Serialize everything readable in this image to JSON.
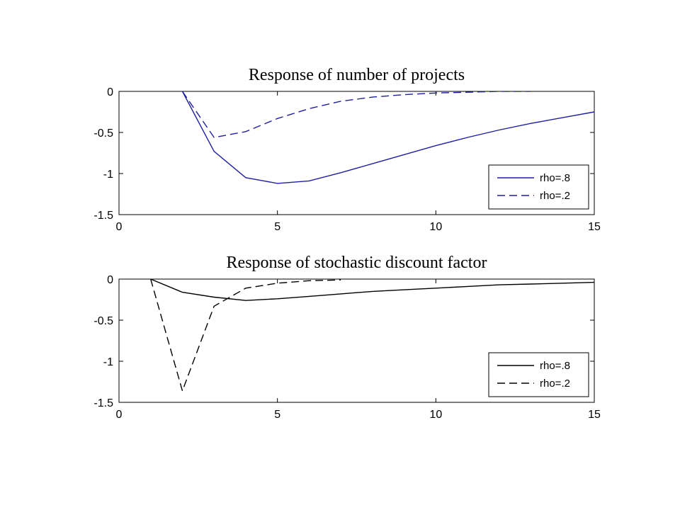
{
  "chart_data": [
    {
      "type": "line",
      "title": "Response of number of projects",
      "xlabel": "",
      "ylabel": "",
      "xlim": [
        0,
        15
      ],
      "ylim": [
        -1.5,
        0
      ],
      "xticks": [
        "0",
        "5",
        "10",
        "15"
      ],
      "yticks": [
        "0",
        "-0.5",
        "-1",
        "-1.5"
      ],
      "grid": false,
      "legend_position": "bottom-right",
      "color": "#1f1fa0",
      "series": [
        {
          "name": "rho=.8",
          "style": "solid",
          "x": [
            2,
            3,
            4,
            5,
            6,
            7,
            8,
            9,
            10,
            11,
            12,
            13,
            14,
            15
          ],
          "y": [
            0,
            -0.73,
            -1.05,
            -1.12,
            -1.09,
            -0.99,
            -0.88,
            -0.77,
            -0.66,
            -0.56,
            -0.47,
            -0.39,
            -0.32,
            -0.25
          ]
        },
        {
          "name": "rho=.2",
          "style": "dashed",
          "x": [
            2,
            3,
            4,
            5,
            6,
            7,
            8,
            9,
            10,
            11,
            12,
            13
          ],
          "y": [
            0,
            -0.56,
            -0.49,
            -0.33,
            -0.21,
            -0.12,
            -0.07,
            -0.04,
            -0.02,
            -0.01,
            0,
            0
          ]
        }
      ]
    },
    {
      "type": "line",
      "title": "Response of stochastic discount factor",
      "xlabel": "",
      "ylabel": "",
      "xlim": [
        0,
        15
      ],
      "ylim": [
        -1.5,
        0
      ],
      "xticks": [
        "0",
        "5",
        "10",
        "15"
      ],
      "yticks": [
        "0",
        "-0.5",
        "-1",
        "-1.5"
      ],
      "grid": false,
      "legend_position": "bottom-right",
      "color": "#000000",
      "series": [
        {
          "name": "rho=.8",
          "style": "solid",
          "x": [
            1,
            2,
            3,
            4,
            5,
            6,
            7,
            8,
            9,
            10,
            11,
            12,
            13,
            14,
            15
          ],
          "y": [
            0,
            -0.16,
            -0.22,
            -0.26,
            -0.24,
            -0.21,
            -0.18,
            -0.15,
            -0.13,
            -0.11,
            -0.09,
            -0.07,
            -0.06,
            -0.05,
            -0.04
          ]
        },
        {
          "name": "rho=.2",
          "style": "dashed",
          "x": [
            1,
            2,
            3,
            4,
            5,
            6,
            7
          ],
          "y": [
            0,
            -1.36,
            -0.33,
            -0.11,
            -0.05,
            -0.02,
            -0.01
          ]
        }
      ]
    }
  ]
}
